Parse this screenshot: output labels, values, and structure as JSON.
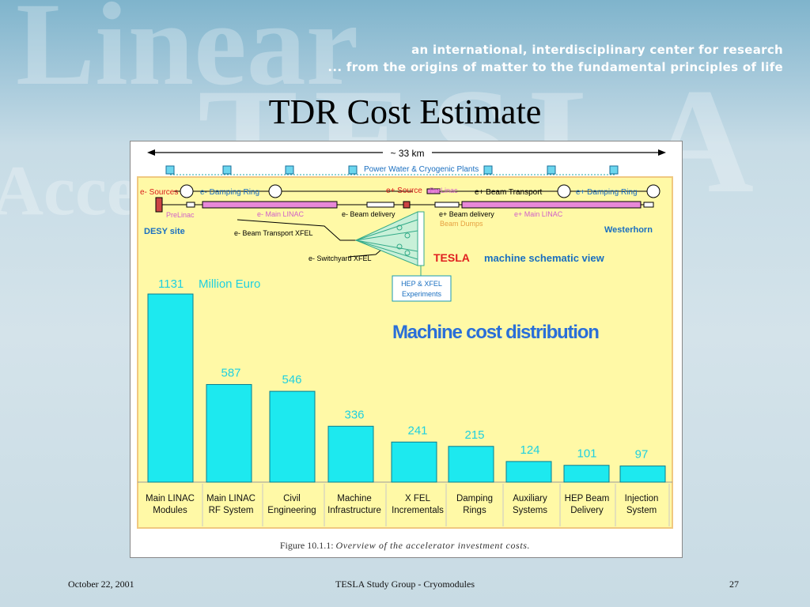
{
  "slide": {
    "title": "TDR Cost Estimate",
    "tagline_1": "an international, interdisciplinary center for research",
    "tagline_2": "... from the origins of matter to the fundamental principles of life",
    "bg_word_1": "Linear",
    "bg_word_2": "TESLA",
    "bg_word_3": "Accelerator",
    "footer_date": "October 22, 2001",
    "footer_center": "TESLA Study Group - Cryomodules",
    "footer_page": "27"
  },
  "schematic": {
    "distance": "~ 33 km",
    "power_plants": "Power Water & Cryogenic Plants",
    "e_minus_sources": "e- Sources",
    "e_minus_damping": "e- Damping Ring",
    "e_plus_source": "e+ Source",
    "prelinac_right": "PreLinac",
    "e_plus_beam_transport": "e+ Beam Transport",
    "e_plus_damping": "e+ Damping Ring",
    "prelinac_left": "PreLinac",
    "e_minus_main_linac": "e- Main LINAC",
    "e_minus_beam_delivery": "e- Beam delivery",
    "e_plus_beam_delivery": "e+ Beam delivery",
    "e_plus_main_linac": "e+ Main LINAC",
    "beam_dumps": "Beam Dumps",
    "desy_site": "DESY site",
    "westerhorn": "Westerhorn",
    "beam_transport_xfel": "e- Beam Transport XFEL",
    "switchyard_xfel": "e- Switchyard XFEL",
    "tesla_word": "TESLA",
    "schematic_view": "machine schematic view",
    "hep_xfel_1": "HEP & XFEL",
    "hep_xfel_2": "Experiments"
  },
  "figure_caption": {
    "label": "Figure 10.1.1:",
    "text": "Overview of the accelerator investment costs."
  },
  "chart_data": {
    "type": "bar",
    "title": "Machine cost distribution",
    "unit_label": "Million Euro",
    "categories": [
      [
        "Main LINAC",
        "Modules"
      ],
      [
        "Main LINAC",
        "RF System"
      ],
      [
        "Civil",
        "Engineering"
      ],
      [
        "Machine",
        "Infrastructure"
      ],
      [
        "X FEL",
        "Incrementals"
      ],
      [
        "Damping",
        "Rings"
      ],
      [
        "Auxiliary",
        "Systems"
      ],
      [
        "HEP Beam",
        "Delivery"
      ],
      [
        "Injection",
        "System"
      ]
    ],
    "values": [
      1131,
      587,
      546,
      336,
      241,
      215,
      124,
      101,
      97
    ],
    "ylim": [
      0,
      1131
    ],
    "grid": false,
    "bar_color": "#1de9ef",
    "label_color": "#1fd0e0",
    "background_color": "#fff9a6"
  }
}
